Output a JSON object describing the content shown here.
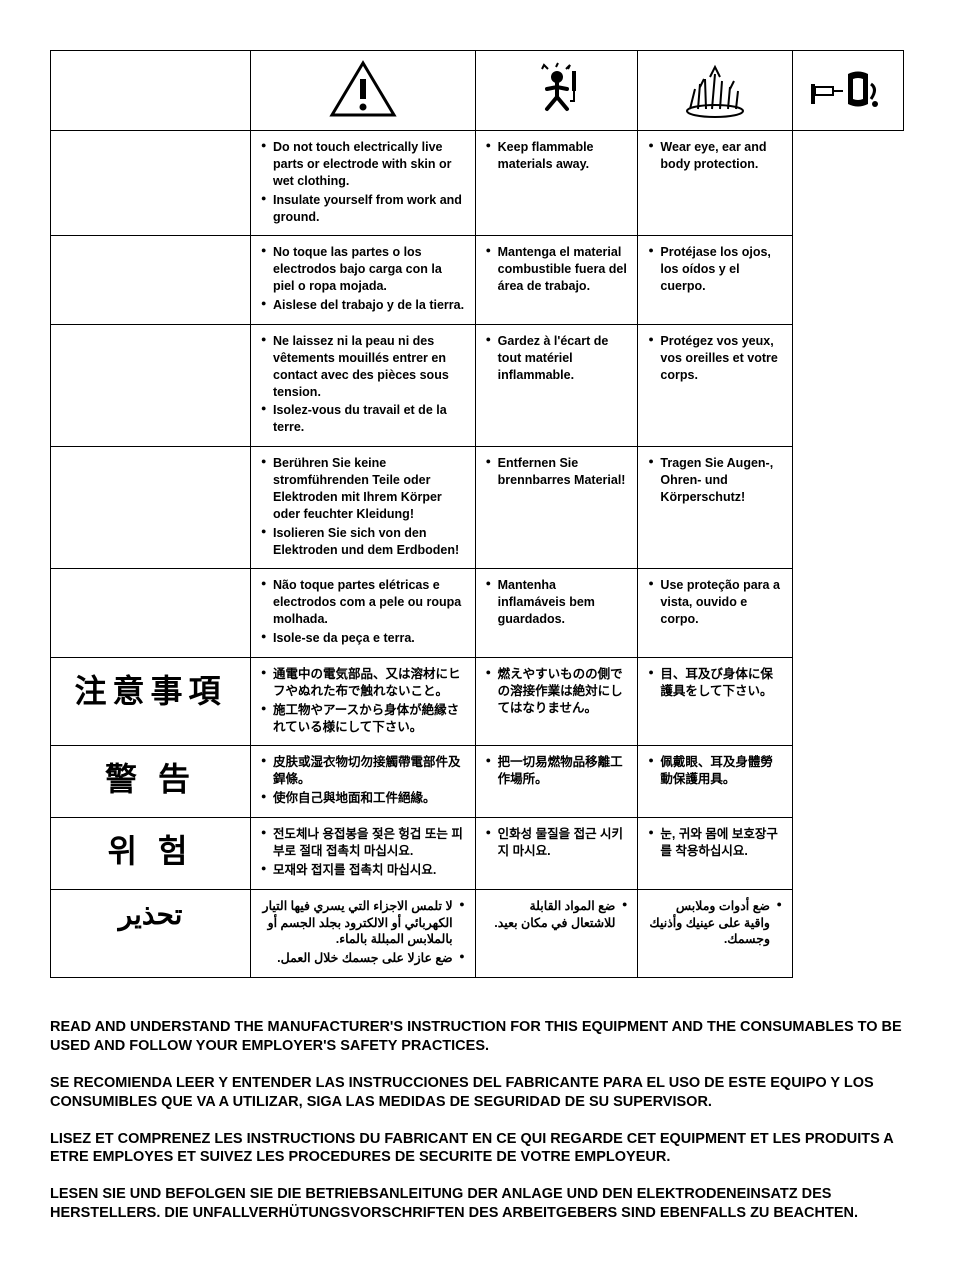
{
  "icons": {
    "warning": "warning-triangle",
    "shock": "electric-shock",
    "fire": "fire-sparks",
    "ppe": "eye-ear-protection"
  },
  "rows": [
    {
      "langLabel": "",
      "labelClass": "",
      "col1": [
        "Do not touch electrically live parts or electrode with skin or wet clothing.",
        "Insulate yourself from work and ground."
      ],
      "col2": [
        "Keep flammable materials away."
      ],
      "col3": [
        "Wear eye, ear and body protection."
      ]
    },
    {
      "langLabel": "",
      "labelClass": "",
      "col1": [
        "No toque las partes o los electrodos bajo carga con la piel o ropa mojada.",
        "Aislese del trabajo y de la tierra."
      ],
      "col2": [
        "Mantenga el material combustible fuera del área de trabajo."
      ],
      "col3": [
        "Protéjase los ojos, los oídos y el cuerpo."
      ]
    },
    {
      "langLabel": "",
      "labelClass": "",
      "col1": [
        "Ne laissez ni la peau ni des vêtements mouillés entrer en contact avec des pièces sous tension.",
        "Isolez-vous du travail et de la terre."
      ],
      "col2": [
        "Gardez à l'écart de tout matériel inflammable."
      ],
      "col3": [
        "Protégez vos yeux, vos oreilles et votre corps."
      ]
    },
    {
      "langLabel": "",
      "labelClass": "",
      "col1": [
        "Berühren Sie keine stromführenden Teile oder Elektroden mit Ihrem Körper oder feuchter Kleidung!",
        "Isolieren Sie sich von den Elektroden und dem Erdboden!"
      ],
      "col2": [
        "Entfernen Sie brennbarres Material!"
      ],
      "col3": [
        "Tragen Sie Augen-, Ohren- und Körperschutz!"
      ]
    },
    {
      "langLabel": "",
      "labelClass": "",
      "col1": [
        "Não toque partes elétricas e electrodos com a pele ou roupa molhada.",
        "Isole-se da peça e terra."
      ],
      "col2": [
        "Mantenha inflamáveis bem guardados."
      ],
      "col3": [
        "Use proteção para a vista, ouvido e corpo."
      ]
    },
    {
      "langLabel": "注意事項",
      "labelClass": "big",
      "col1": [
        "通電中の電気部品、又は溶材にヒフやぬれた布で触れないこと。",
        "施工物やアースから身体が絶縁されている様にして下さい。"
      ],
      "col2": [
        "燃えやすいものの側での溶接作業は絶対にしてはなりません。"
      ],
      "col3": [
        "目、耳及び身体に保護具をして下さい。"
      ]
    },
    {
      "langLabel": "警 告",
      "labelClass": "big",
      "col1": [
        "皮肤或湿衣物切勿接觸帶電部件及銲條。",
        "使你自己與地面和工件絕緣。"
      ],
      "col2": [
        "把一切易燃物品移離工作場所。"
      ],
      "col3": [
        "佩戴眼、耳及身體勞動保護用具。"
      ]
    },
    {
      "langLabel": "위 험",
      "labelClass": "big",
      "col1": [
        "전도체나 용접봉을 젖은 헝겁 또는 피부로 절대 접촉치 마십시요.",
        "모재와 접지를 접촉치 마십시요."
      ],
      "col2": [
        "인화성 물질을 접근 시키지 마시요."
      ],
      "col3": [
        "눈, 귀와 몸에 보호장구를 착용하십시요."
      ]
    },
    {
      "langLabel": "تحذير",
      "labelClass": "arabic",
      "rtl": true,
      "col1": [
        "لا تلمس الاجزاء التي يسري فيها التيار الكهربائي أو الالكترود بجلد الجسم أو بالملابس المبللة بالماء.",
        "ضع عازلا على جسمك خلال العمل."
      ],
      "col2": [
        "ضع المواد القابلة للاشتعال في مكان بعيد."
      ],
      "col3": [
        "ضع أدوات وملابس واقية على عينيك وأذنيك وجسمك."
      ]
    }
  ],
  "bottom": [
    "READ AND UNDERSTAND THE MANUFACTURER'S INSTRUCTION FOR THIS EQUIPMENT AND THE CONSUMABLES TO BE USED AND FOLLOW YOUR EMPLOYER'S SAFETY PRACTICES.",
    "SE RECOMIENDA LEER Y ENTENDER LAS INSTRUCCIONES DEL FABRICANTE PARA EL USO DE ESTE EQUIPO Y LOS CONSUMIBLES QUE VA A UTILIZAR, SIGA LAS MEDIDAS DE SEGURIDAD DE SU SUPERVISOR.",
    "LISEZ ET COMPRENEZ LES INSTRUCTIONS DU FABRICANT EN CE QUI REGARDE CET EQUIPMENT ET LES PRODUITS A ETRE EMPLOYES ET SUIVEZ LES PROCEDURES DE SECURITE DE VOTRE EMPLOYEUR.",
    "LESEN SIE UND BEFOLGEN SIE DIE BETRIEBSANLEITUNG DER ANLAGE UND DEN ELEKTRODENEINSATZ DES HERSTELLERS. DIE UNFALLVERHÜTUNGSVORSCHRIFTEN DES ARBEITGEBERS SIND EBENFALLS ZU BEACHTEN."
  ],
  "colors": {
    "text": "#000000",
    "background": "#ffffff",
    "border": "#000000"
  }
}
